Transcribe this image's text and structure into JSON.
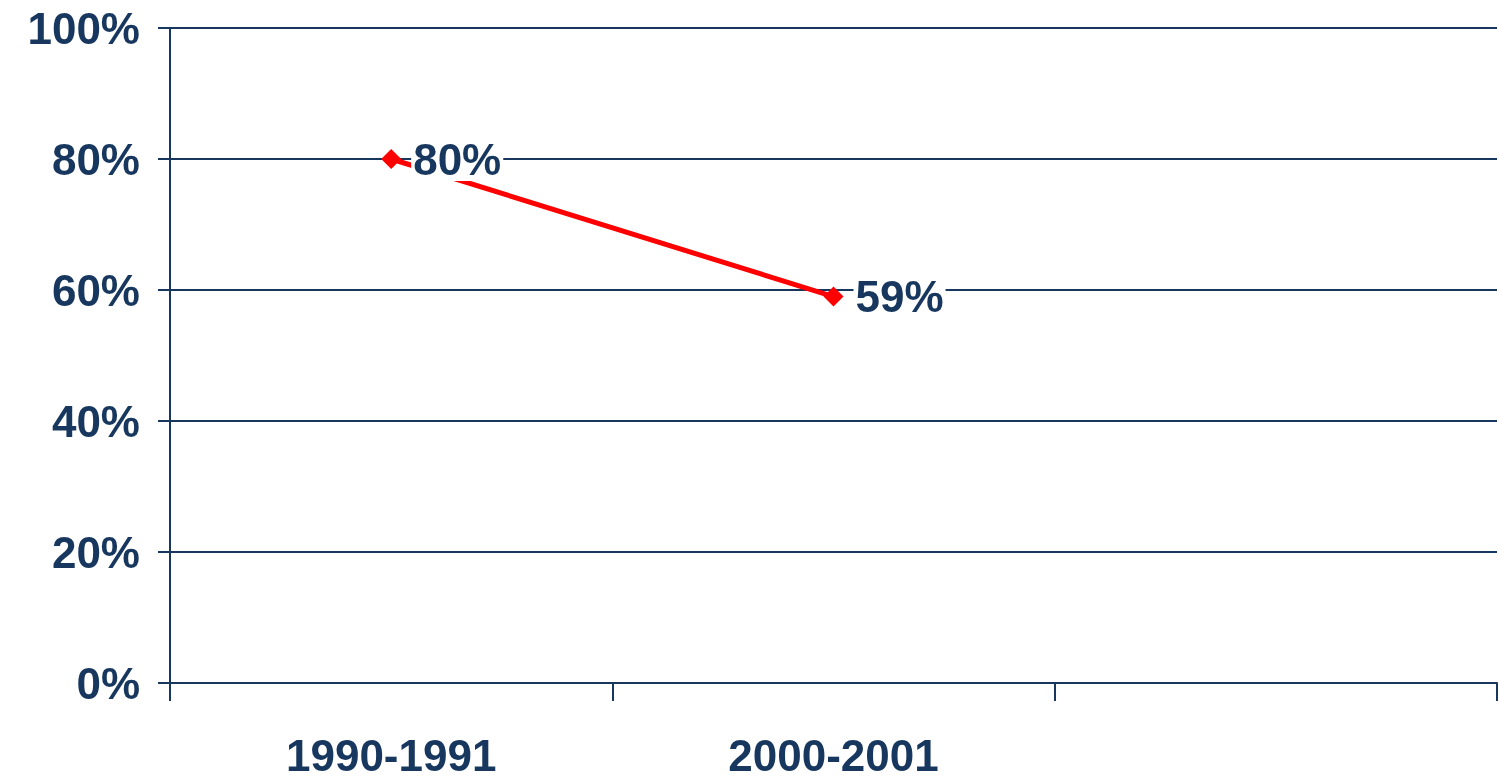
{
  "chart_data": {
    "type": "line",
    "categories": [
      "1990-1991",
      "2000-2001",
      null
    ],
    "series": [
      {
        "color": "#ff0000",
        "values": [
          80,
          59,
          null
        ]
      }
    ],
    "ylim": [
      0,
      100
    ],
    "yticks": [
      {
        "value": 0,
        "label": "0%"
      },
      {
        "value": 20,
        "label": "20%"
      },
      {
        "value": 40,
        "label": "40%"
      },
      {
        "value": 60,
        "label": "60%"
      },
      {
        "value": 80,
        "label": "80%"
      },
      {
        "value": 100,
        "label": "100%"
      }
    ],
    "value_labels": [
      [
        "80%",
        "59%",
        null
      ]
    ],
    "grid": "y",
    "marker": "diamond",
    "line_style": "solid"
  }
}
